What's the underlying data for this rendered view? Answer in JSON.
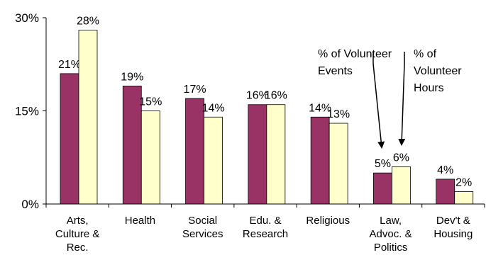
{
  "colors": {
    "events": "#993366",
    "hours": "#FFFFCC",
    "axis": "#000000",
    "bar_stroke": "#000000"
  },
  "chart_data": {
    "type": "bar",
    "categories": [
      [
        "Arts,",
        "Culture &",
        "Rec."
      ],
      [
        "Health"
      ],
      [
        "Social",
        "Services"
      ],
      [
        "Edu. &",
        "Research"
      ],
      [
        "Religious"
      ],
      [
        "Law,",
        "Advoc. &",
        "Politics"
      ],
      [
        "Dev't &",
        "Housing"
      ]
    ],
    "series": [
      {
        "name": "% of Volunteer Events",
        "values": [
          21,
          19,
          17,
          16,
          14,
          5,
          4
        ],
        "color": "#993366"
      },
      {
        "name": "% of Volunteer Hours",
        "values": [
          28,
          15,
          14,
          16,
          13,
          6,
          2
        ],
        "color": "#FFFFCC"
      }
    ],
    "data_labels": [
      [
        "21%",
        "19%",
        "17%",
        "16%",
        "14%",
        "5%",
        "4%"
      ],
      [
        "28%",
        "15%",
        "14%",
        "16%",
        "13%",
        "6%",
        "2%"
      ]
    ],
    "yticks": [
      0,
      15,
      30
    ],
    "ytick_labels": [
      "0%",
      "15%",
      "30%"
    ],
    "ylim": [
      0,
      30
    ],
    "grid": false,
    "annotations": [
      {
        "series": 0,
        "category": 5,
        "lines": [
          "% of Volunteer",
          "Events"
        ]
      },
      {
        "series": 1,
        "category": 5,
        "lines": [
          "% of",
          "Volunteer",
          "Hours"
        ]
      }
    ]
  }
}
